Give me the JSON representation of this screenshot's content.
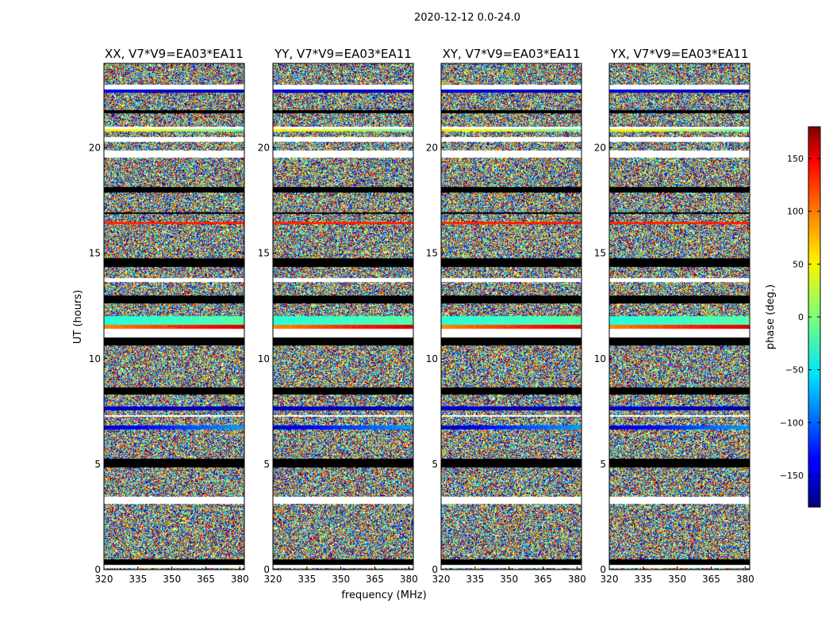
{
  "figure": {
    "suptitle": "2020-12-12 0.0-24.0",
    "xlabel": "frequency (MHz)",
    "ylabel": "UT (hours)"
  },
  "chart_data": [
    {
      "type": "heatmap",
      "title": "XX, V7*V9=EA03*EA11",
      "x_ticks": [
        "320",
        "335",
        "350",
        "365",
        "380"
      ],
      "y_ticks": [
        "0",
        "5",
        "10",
        "15",
        "20"
      ],
      "xlim": [
        320,
        382
      ],
      "ylim": [
        0,
        24
      ],
      "value_range": [
        -180,
        180
      ]
    },
    {
      "type": "heatmap",
      "title": "YY, V7*V9=EA03*EA11",
      "x_ticks": [
        "320",
        "335",
        "350",
        "365",
        "380"
      ],
      "y_ticks": [
        "0",
        "5",
        "10",
        "15",
        "20"
      ],
      "xlim": [
        320,
        382
      ],
      "ylim": [
        0,
        24
      ],
      "value_range": [
        -180,
        180
      ]
    },
    {
      "type": "heatmap",
      "title": "XY, V7*V9=EA03*EA11",
      "x_ticks": [
        "320",
        "335",
        "350",
        "365",
        "380"
      ],
      "y_ticks": [
        "0",
        "5",
        "10",
        "15",
        "20"
      ],
      "xlim": [
        320,
        382
      ],
      "ylim": [
        0,
        24
      ],
      "value_range": [
        -180,
        180
      ]
    },
    {
      "type": "heatmap",
      "title": "YX, V7*V9=EA03*EA11",
      "x_ticks": [
        "320",
        "335",
        "350",
        "365",
        "380"
      ],
      "y_ticks": [
        "0",
        "5",
        "10",
        "15",
        "20"
      ],
      "xlim": [
        320,
        382
      ],
      "ylim": [
        0,
        24
      ],
      "value_range": [
        -180,
        180
      ]
    }
  ],
  "colorbar": {
    "label": "phase (deg.)",
    "range": [
      -180,
      180
    ],
    "colormap": "jet",
    "ticks": [
      "150",
      "100",
      "50",
      "0",
      "−50",
      "−100",
      "−150"
    ],
    "tick_values": [
      150,
      100,
      50,
      0,
      -50,
      -100,
      -150
    ]
  }
}
